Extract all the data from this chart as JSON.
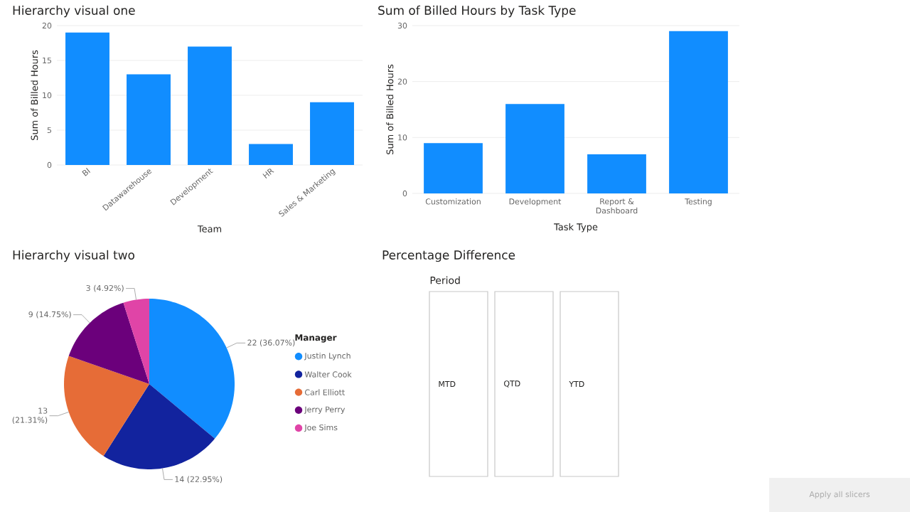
{
  "chart_data": [
    {
      "type": "bar",
      "title": "Hierarchy visual one",
      "xlabel": "Team",
      "ylabel": "Sum of Billed Hours",
      "categories": [
        "BI",
        "Datawarehouse",
        "Development",
        "HR",
        "Sales & Marketing"
      ],
      "values": [
        19,
        13,
        17,
        3,
        9
      ],
      "color": "#118dff",
      "ylim": [
        0,
        20
      ],
      "yticks": [
        0,
        5,
        10,
        15,
        20
      ],
      "grid": "y"
    },
    {
      "type": "bar",
      "title": "Sum of Billed Hours by Task Type",
      "xlabel": "Task Type",
      "ylabel": "Sum of Billed Hours",
      "categories": [
        "Customization",
        "Development",
        "Report & Dashboard",
        "Testing"
      ],
      "values": [
        9,
        16,
        7,
        29
      ],
      "color": "#118dff",
      "ylim": [
        0,
        30
      ],
      "yticks": [
        0,
        10,
        20,
        30
      ],
      "grid": "y"
    },
    {
      "type": "pie",
      "title": "Hierarchy visual two",
      "legend_title": "Manager",
      "legend": "right",
      "categories": [
        "Justin Lynch",
        "Walter Cook",
        "Carl Elliott",
        "Jerry Perry",
        "Joe Sims"
      ],
      "values": [
        22,
        14,
        13,
        9,
        3
      ],
      "value_labels": [
        "22 (36.07%)",
        "14 (22.95%)",
        "13 (21.31%)",
        "9 (14.75%)",
        "3 (4.92%)"
      ],
      "colors": [
        "#118dff",
        "#12239e",
        "#e66c37",
        "#6b007b",
        "#e044a7"
      ]
    },
    {
      "type": "other",
      "title": "Percentage Difference",
      "subtitle": "Period",
      "categories": [
        "MTD",
        "QTD",
        "YTD"
      ],
      "annotations": [
        "Apply all slicers"
      ]
    }
  ]
}
